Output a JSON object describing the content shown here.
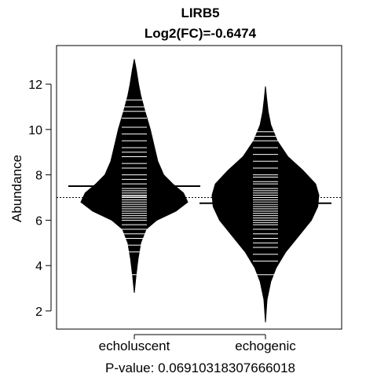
{
  "chart_data": {
    "type": "beanplot",
    "title": "LIRB5",
    "subtitle": "Log2(FC)=-0.6474",
    "xlabel": "P-value: 0.06910318307666018",
    "ylabel": "Abundance",
    "categories": [
      "echoluscent",
      "echogenic"
    ],
    "ylim": [
      1.2,
      13.7
    ],
    "yticks": [
      2,
      4,
      6,
      8,
      10,
      12
    ],
    "overall_mean": 7.0,
    "series": [
      {
        "name": "echoluscent",
        "mean": 7.5,
        "range": [
          2.8,
          13.1
        ],
        "density": [
          [
            2.8,
            0.0
          ],
          [
            3.5,
            0.03
          ],
          [
            4.3,
            0.07
          ],
          [
            5.0,
            0.12
          ],
          [
            5.6,
            0.22
          ],
          [
            6.0,
            0.42
          ],
          [
            6.4,
            0.78
          ],
          [
            6.8,
            1.0
          ],
          [
            7.2,
            0.92
          ],
          [
            7.6,
            0.72
          ],
          [
            8.0,
            0.55
          ],
          [
            8.6,
            0.44
          ],
          [
            9.2,
            0.38
          ],
          [
            10.0,
            0.3
          ],
          [
            10.8,
            0.2
          ],
          [
            11.5,
            0.12
          ],
          [
            12.0,
            0.08
          ],
          [
            12.6,
            0.04
          ],
          [
            13.1,
            0.0
          ]
        ],
        "observations": [
          3.6,
          4.6,
          4.9,
          5.2,
          5.4,
          5.6,
          5.8,
          6.0,
          6.1,
          6.2,
          6.3,
          6.4,
          6.5,
          6.6,
          6.7,
          6.8,
          6.9,
          7.0,
          7.05,
          7.1,
          7.2,
          7.3,
          7.4,
          7.6,
          7.8,
          8.0,
          8.3,
          8.5,
          8.8,
          9.0,
          9.2,
          9.5,
          9.8,
          10.1,
          10.5,
          10.8,
          11.0,
          11.3
        ]
      },
      {
        "name": "echogenic",
        "mean": 6.75,
        "range": [
          1.5,
          11.9
        ],
        "density": [
          [
            1.5,
            0.0
          ],
          [
            2.5,
            0.03
          ],
          [
            3.3,
            0.1
          ],
          [
            3.9,
            0.2
          ],
          [
            4.6,
            0.38
          ],
          [
            5.3,
            0.62
          ],
          [
            6.0,
            0.86
          ],
          [
            6.6,
            0.98
          ],
          [
            7.1,
            1.0
          ],
          [
            7.6,
            0.94
          ],
          [
            8.2,
            0.7
          ],
          [
            8.8,
            0.42
          ],
          [
            9.5,
            0.22
          ],
          [
            10.2,
            0.1
          ],
          [
            10.8,
            0.05
          ],
          [
            11.4,
            0.02
          ],
          [
            11.9,
            0.0
          ]
        ],
        "observations": [
          3.6,
          4.2,
          4.5,
          4.8,
          5.0,
          5.2,
          5.4,
          5.6,
          5.8,
          5.9,
          6.0,
          6.1,
          6.2,
          6.3,
          6.4,
          6.5,
          6.6,
          6.7,
          6.8,
          6.9,
          7.0,
          7.1,
          7.2,
          7.3,
          7.4,
          7.6,
          7.7,
          7.9,
          8.0,
          8.3,
          8.6,
          8.9,
          9.2,
          9.5,
          9.7,
          9.9
        ]
      }
    ]
  }
}
